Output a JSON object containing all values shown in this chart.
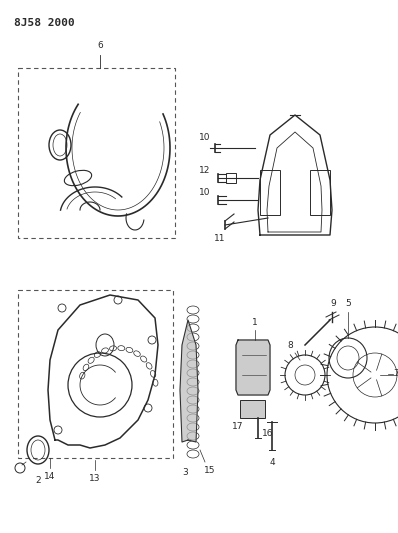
{
  "title": "8J58 2000",
  "bg_color": "#ffffff",
  "line_color": "#2a2a2a",
  "title_fontsize": 8,
  "label_fontsize": 6.5,
  "fig_width": 3.98,
  "fig_height": 5.33,
  "dpi": 100
}
